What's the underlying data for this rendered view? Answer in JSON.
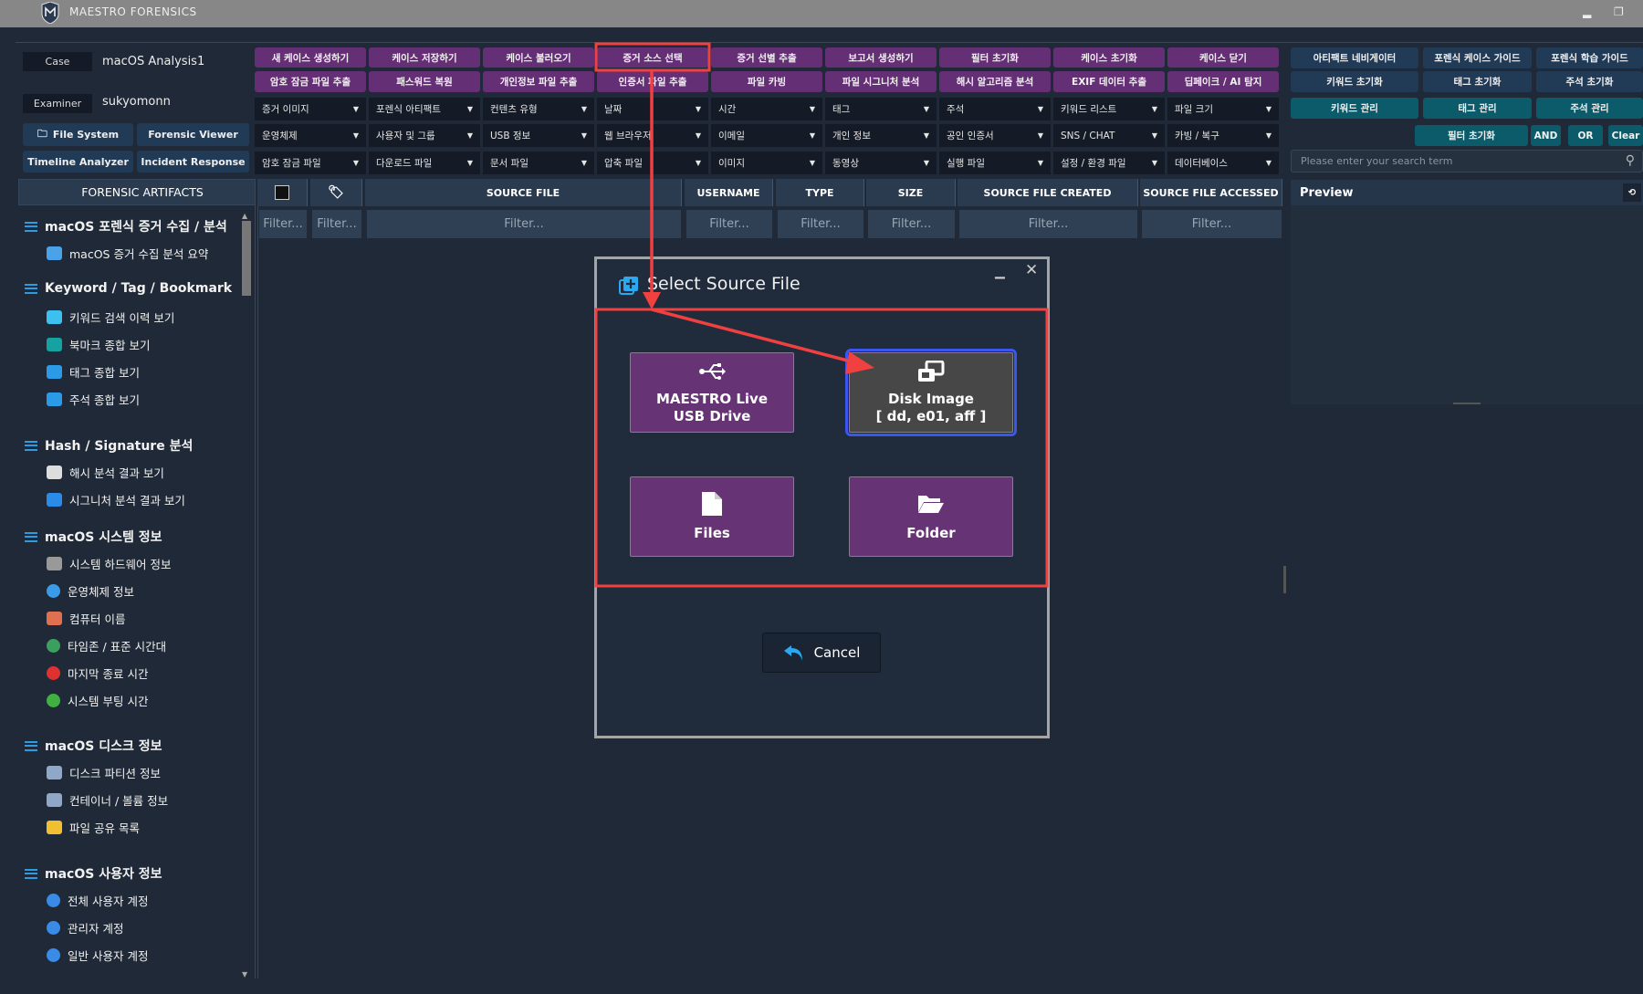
{
  "app": {
    "title": "MAESTRO FORENSICS"
  },
  "case": {
    "case_label": "Case",
    "case_value": "macOS Analysis1",
    "examiner_label": "Examiner",
    "examiner_value": "sukyomonn"
  },
  "nav_buttons": [
    "File System",
    "Forensic Viewer",
    "Timeline Analyzer",
    "Incident Response"
  ],
  "action_buttons": [
    [
      "새 케이스 생성하기",
      "케이스 저장하기",
      "케이스 불러오기",
      "증거 소스 선택",
      "증거 선별 추출",
      "보고서 생성하기",
      "필터 초기화",
      "케이스 초기화",
      "케이스 닫기"
    ],
    [
      "암호 잠금 파일 추출",
      "패스워드 복원",
      "개인정보 파일 추출",
      "인증서 파일 추출",
      "파일 카빙",
      "파일 시그니처 분석",
      "해시 알고리즘 분석",
      "EXIF 데이터 추출",
      "딥페이크 / AI 탐지"
    ]
  ],
  "filter_dropdowns": [
    [
      "증거 이미지",
      "포렌식 아티팩트",
      "컨텐츠 유형",
      "날짜",
      "시간",
      "태그",
      "주석",
      "키워드 리스트",
      "파일 크기"
    ],
    [
      "운영체제",
      "사용자 및 그룹",
      "USB 정보",
      "웹 브라우저",
      "이메일",
      "개인 정보",
      "공인 인증서",
      "SNS / CHAT",
      "카빙 / 복구"
    ],
    [
      "암호 잠금 파일",
      "다운로드 파일",
      "문서 파일",
      "압축 파일",
      "이미지",
      "동영상",
      "실행 파일",
      "설정 / 환경 파일",
      "데이터베이스"
    ]
  ],
  "right_buttons": [
    [
      "아티팩트 네비게이터",
      "포렌식 케이스 가이드",
      "포렌식 학습 가이드"
    ],
    [
      "키워드 초기화",
      "태그 초기화",
      "주석 초기화"
    ],
    [
      "키워드 관리",
      "태그 관리",
      "주석 관리"
    ]
  ],
  "search_controls": {
    "reset": "필터 초기화",
    "and": "AND",
    "or": "OR",
    "clear": "Clear",
    "placeholder": "Please enter your search term"
  },
  "preview": {
    "title": "Preview"
  },
  "sidebar": {
    "header": "FORENSIC ARTIFACTS",
    "sections": [
      {
        "title": "macOS 포렌식 증거 수집 / 분석",
        "items": [
          {
            "label": "macOS 증거 수집 분석 요약",
            "icon": "laptop-chart-icon"
          }
        ]
      },
      {
        "title": "Keyword / Tag / Bookmark",
        "items": [
          {
            "label": "키워드 검색 이력 보기",
            "icon": "search-window-icon"
          },
          {
            "label": "북마크 종합 보기",
            "icon": "bookmark-icon"
          },
          {
            "label": "태그 종합 보기",
            "icon": "tag-icon"
          },
          {
            "label": "주석 종합 보기",
            "icon": "tag-icon"
          }
        ]
      },
      {
        "title": "Hash / Signature 분석",
        "items": [
          {
            "label": "해시 분석 결과 보기",
            "icon": "hash-monitor-icon"
          },
          {
            "label": "시그니처 분석 결과 보기",
            "icon": "layers-icon"
          }
        ]
      },
      {
        "title": "macOS 시스템 정보",
        "items": [
          {
            "label": "시스템 하드웨어 정보",
            "icon": "chip-icon"
          },
          {
            "label": "운영체제 정보",
            "icon": "apple-icon"
          },
          {
            "label": "컴퓨터 이름",
            "icon": "computer-icon"
          },
          {
            "label": "타임존 / 표준 시간대",
            "icon": "globe-icon"
          },
          {
            "label": "마지막 종료 시간",
            "icon": "power-red-icon"
          },
          {
            "label": "시스템 부팅 시간",
            "icon": "power-green-icon"
          }
        ]
      },
      {
        "title": "macOS 디스크 정보",
        "items": [
          {
            "label": "디스크 파티션 정보",
            "icon": "disk-icon"
          },
          {
            "label": "컨테이너 / 볼륨 정보",
            "icon": "disk-icon"
          },
          {
            "label": "파일 공유 목록",
            "icon": "folder-icon"
          }
        ]
      },
      {
        "title": "macOS 사용자 정보",
        "items": [
          {
            "label": "전체 사용자 계정",
            "icon": "user-icon"
          },
          {
            "label": "관리자 계정",
            "icon": "user-icon"
          },
          {
            "label": "일반 사용자 계정",
            "icon": "user-icon"
          }
        ]
      }
    ]
  },
  "table": {
    "columns": [
      "",
      "",
      "SOURCE FILE",
      "USERNAME",
      "TYPE",
      "SIZE",
      "SOURCE FILE CREATED",
      "SOURCE FILE ACCESSED"
    ],
    "filter_placeholder": "Filter..."
  },
  "dialog": {
    "title": "Select Source File",
    "options": [
      {
        "line1": "MAESTRO Live",
        "line2": "USB Drive",
        "icon": "usb-icon"
      },
      {
        "line1": "Disk Image",
        "line2": "[ dd, e01, aff ]",
        "icon": "disk-image-icon",
        "selected": true
      },
      {
        "line1": "Files",
        "line2": "",
        "icon": "file-icon"
      },
      {
        "line1": "Folder",
        "line2": "",
        "icon": "folder-open-icon"
      }
    ],
    "cancel": "Cancel"
  },
  "colors": {
    "accent_purple": "#652f75",
    "navy": "#213a56",
    "teal": "#0b5b6b",
    "annotation_red": "#f04040",
    "selection_blue": "#3b55f0"
  }
}
